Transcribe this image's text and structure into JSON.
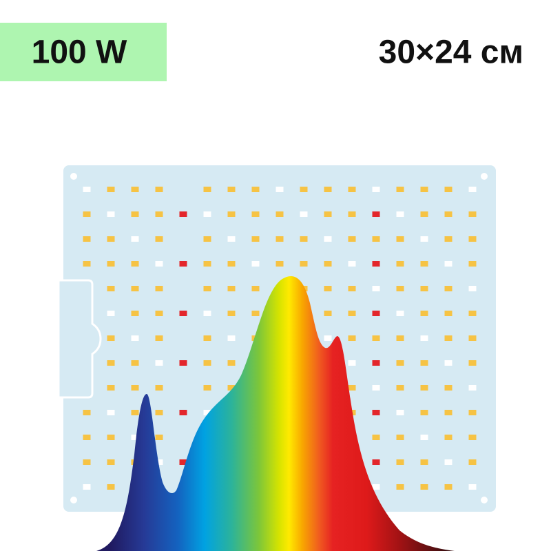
{
  "badge": {
    "power": "100 W"
  },
  "size": "30×24 см"
}
